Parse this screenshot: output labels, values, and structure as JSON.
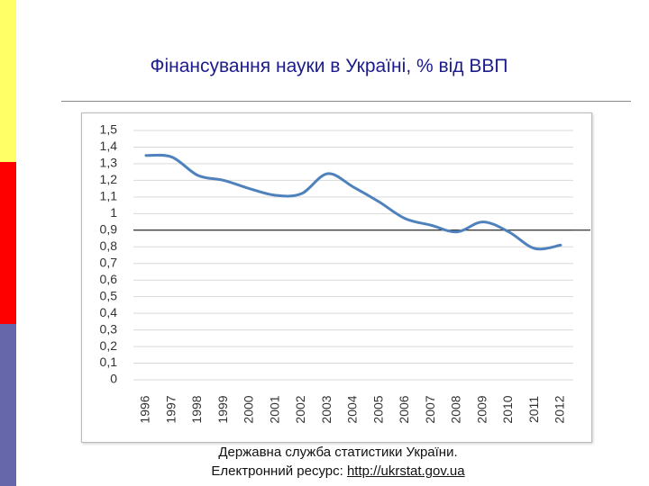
{
  "chart_data": {
    "type": "line",
    "title": "Фінансування науки в Україні, % від ВВП",
    "categories": [
      "1996",
      "1997",
      "1998",
      "1999",
      "2000",
      "2001",
      "2002",
      "2003",
      "2004",
      "2005",
      "2006",
      "2007",
      "2008",
      "2009",
      "2010",
      "2011",
      "2012"
    ],
    "series": [
      {
        "color": "#4f81bd",
        "values": [
          1.35,
          1.34,
          1.23,
          1.2,
          1.15,
          1.11,
          1.12,
          1.24,
          1.16,
          1.07,
          0.97,
          0.93,
          0.89,
          0.95,
          0.89,
          0.79,
          0.81
        ]
      }
    ],
    "ylim": [
      0,
      1.5
    ],
    "yticks": [
      0,
      {
        "value": 0.1,
        "label": "0,1"
      },
      {
        "value": 0.2,
        "label": "0,2"
      },
      {
        "value": 0.3,
        "label": "0,3"
      },
      {
        "value": 0.4,
        "label": "0,4"
      },
      {
        "value": 0.5,
        "label": "0,5"
      },
      {
        "value": 0.6,
        "label": "0,6"
      },
      {
        "value": 0.7,
        "label": "0,7"
      },
      {
        "value": 0.8,
        "label": "0,8"
      },
      {
        "value": 0.9,
        "label": "0,9"
      },
      1,
      {
        "value": 1.1,
        "label": "1,1"
      },
      {
        "value": 1.2,
        "label": "1,2"
      },
      {
        "value": 1.3,
        "label": "1,3"
      },
      {
        "value": 1.4,
        "label": "1,4"
      },
      {
        "value": 1.5,
        "label": "1,5"
      }
    ],
    "grid": true,
    "reference_line": 0.9,
    "source": "Державна служба статистики України.",
    "resource_label": "Електронний ресурс:",
    "url": "http://ukrstat.gov.ua"
  }
}
